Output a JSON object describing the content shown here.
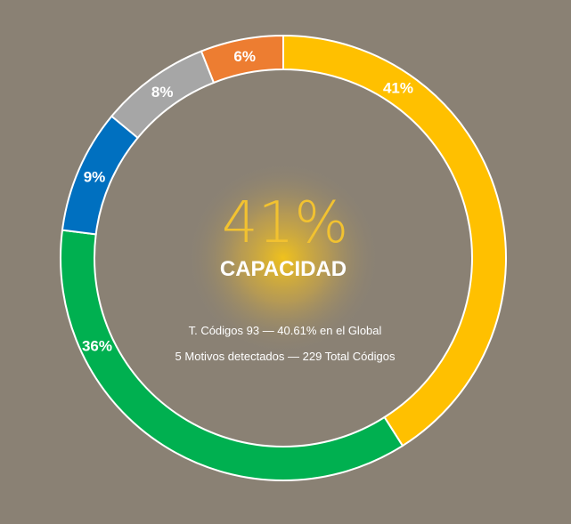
{
  "chart_data": {
    "type": "pie",
    "variant": "donut",
    "slices": [
      {
        "label": "41%",
        "value": 41,
        "color": "#ffc000"
      },
      {
        "label": "36%",
        "value": 36,
        "color": "#00b050"
      },
      {
        "label": "9%",
        "value": 9,
        "color": "#0070c0"
      },
      {
        "label": "8%",
        "value": 8,
        "color": "#a6a6a6"
      },
      {
        "label": "6%",
        "value": 6,
        "color": "#ed7d31"
      }
    ],
    "center": {
      "percent": "41%",
      "title": "CAPACIDAD",
      "line1": "T. Códigos 93 — 40.61% en el Global",
      "line2": "5 Motivos detectados — 229 Total Códigos"
    },
    "legend": "none",
    "background": "#8a8174"
  }
}
